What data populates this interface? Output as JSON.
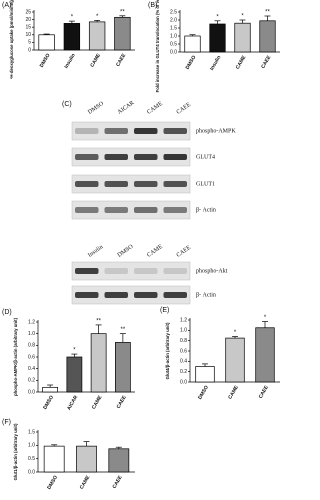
{
  "chart_data": [
    {
      "type": "bar",
      "panel_label": "(A)",
      "ylabel": "³H-deoxyglucose uptake (pmol/min/mg protein)",
      "categories": [
        "DMSO",
        "Insulin",
        "CAME",
        "CAEE"
      ],
      "values": [
        10,
        17.5,
        18.5,
        21.5
      ],
      "errors": [
        0.5,
        1.5,
        1,
        1
      ],
      "annotations": [
        null,
        "*",
        "*",
        "**"
      ],
      "colors": [
        "#ffffff",
        "#111111",
        "#c8c8c8",
        "#8a8a8a"
      ],
      "ylim": [
        0,
        25
      ],
      "yticks": [
        0,
        5,
        10,
        15,
        20,
        25
      ]
    },
    {
      "type": "bar",
      "panel_label": "(B)",
      "ylabel": "Fold increase in GLUT4 translocation (% of vehicle control)",
      "categories": [
        "DMSO",
        "Insulin",
        "CAME",
        "CAEE"
      ],
      "values": [
        1.0,
        1.75,
        1.8,
        1.95
      ],
      "errors": [
        0.08,
        0.2,
        0.2,
        0.3
      ],
      "annotations": [
        null,
        "*",
        "*",
        "**"
      ],
      "colors": [
        "#ffffff",
        "#111111",
        "#c8c8c8",
        "#8a8a8a"
      ],
      "ylim": [
        0,
        2.5
      ],
      "yticks": [
        {
          "value": 0,
          "label": "0.0"
        },
        0.5,
        {
          "value": 1,
          "label": "1.0"
        },
        1.5,
        {
          "value": 2,
          "label": "2.0"
        },
        2.5
      ]
    },
    {
      "type": "bar",
      "panel_label": "(D)",
      "ylabel": "phospho-AMPK/β-actin (arbitrary unit)",
      "categories": [
        "DMSO",
        "AICAR",
        "CAME",
        "CAEE"
      ],
      "values": [
        0.08,
        0.6,
        1.0,
        0.85
      ],
      "errors": [
        0.04,
        0.05,
        0.15,
        0.15
      ],
      "annotations": [
        null,
        "*",
        "**",
        "**"
      ],
      "colors": [
        "#ffffff",
        "#555555",
        "#c8c8c8",
        "#8a8a8a"
      ],
      "ylim": [
        0,
        1.2
      ],
      "yticks": [
        {
          "value": 0,
          "label": "0.0"
        },
        0.2,
        0.4,
        0.6,
        0.8,
        {
          "value": 1,
          "label": "1.0"
        },
        1.2
      ]
    },
    {
      "type": "bar",
      "panel_label": "(E)",
      "ylabel": "Glut4/β-actin (arbitrary unit)",
      "categories": [
        "DMSO",
        "CAME",
        "CAEE"
      ],
      "values": [
        0.3,
        0.85,
        1.05
      ],
      "errors": [
        0.05,
        0.03,
        0.12
      ],
      "annotations": [
        null,
        "*",
        "*"
      ],
      "colors": [
        "#ffffff",
        "#c8c8c8",
        "#8a8a8a"
      ],
      "ylim": [
        0,
        1.2
      ],
      "yticks": [
        {
          "value": 0,
          "label": "0.0"
        },
        0.2,
        0.4,
        0.6,
        0.8,
        {
          "value": 1,
          "label": "1.0"
        },
        1.2
      ]
    },
    {
      "type": "bar",
      "panel_label": "(F)",
      "ylabel": "Glut1/β-actin (arbitrary unit)",
      "categories": [
        "DMSO",
        "CAME",
        "CAEE"
      ],
      "values": [
        0.97,
        0.97,
        0.87
      ],
      "errors": [
        0.05,
        0.17,
        0.06
      ],
      "annotations": [
        null,
        null,
        null
      ],
      "colors": [
        "#ffffff",
        "#c8c8c8",
        "#8a8a8a"
      ],
      "ylim": [
        0,
        1.5
      ],
      "yticks": [
        {
          "value": 0,
          "label": "0.0"
        },
        0.5,
        {
          "value": 1,
          "label": "1.0"
        },
        1.5
      ]
    }
  ],
  "blots": {
    "panel_label": "(C)",
    "groups": [
      {
        "lanes": [
          "DMSO",
          "AICAR",
          "CAME",
          "CAEE"
        ],
        "rows": [
          "phospho-AMPK",
          "GLUT4",
          "GLUT1",
          "β- Actin"
        ]
      },
      {
        "lanes": [
          "Insulin",
          "DMSO",
          "CAME",
          "CAEE"
        ],
        "rows": [
          "phospho-Akt",
          "β- Actin"
        ]
      }
    ]
  }
}
